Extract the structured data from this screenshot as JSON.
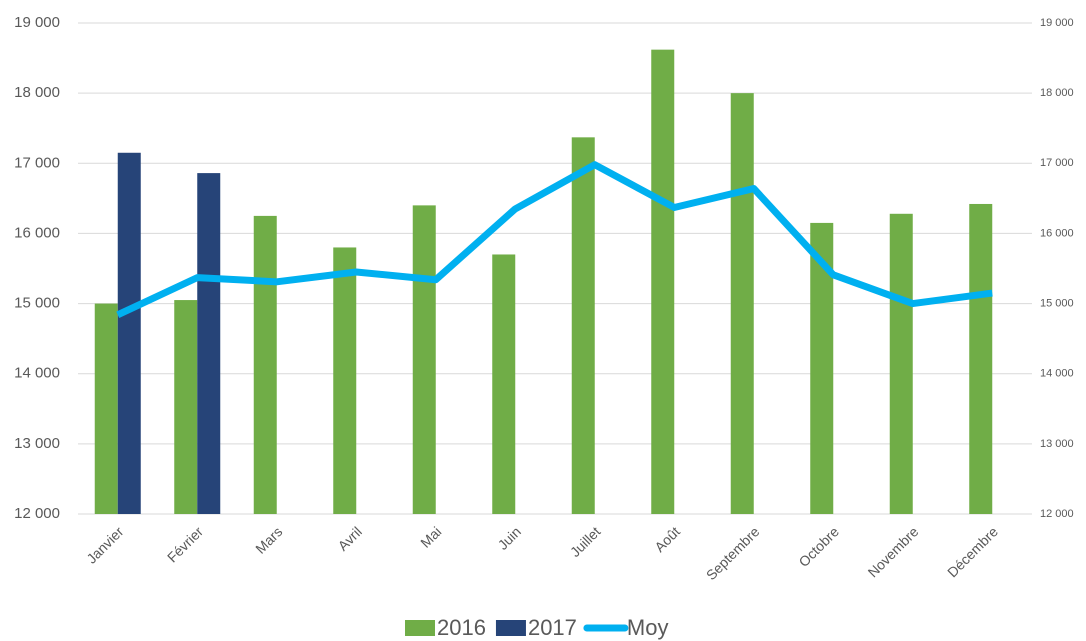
{
  "chart_data": {
    "type": "bar",
    "categories": [
      "Janvier",
      "Février",
      "Mars",
      "Avril",
      "Mai",
      "Juin",
      "Juillet",
      "Août",
      "Septembre",
      "Octobre",
      "Novembre",
      "Décembre"
    ],
    "series": [
      {
        "name": "2016",
        "color": "#70ad47",
        "values": [
          15000,
          15050,
          16250,
          15800,
          16400,
          15700,
          17370,
          18620,
          18000,
          16150,
          16280,
          16420
        ]
      },
      {
        "name": "2017",
        "color": "#264478",
        "values": [
          17150,
          16860,
          null,
          null,
          null,
          null,
          null,
          null,
          null,
          null,
          null,
          null
        ]
      },
      {
        "name": "Moy",
        "color": "#00b0f0",
        "type": "line",
        "axis": "y2",
        "values": [
          14840,
          15370,
          15310,
          15450,
          15340,
          16350,
          16980,
          16370,
          16640,
          15410,
          15000,
          15150
        ]
      }
    ],
    "ylim": [
      12000,
      19000
    ],
    "yticks": [
      {
        "value": 12000,
        "label": "12 000"
      },
      {
        "value": 13000,
        "label": "13 000"
      },
      {
        "value": 14000,
        "label": "14 000"
      },
      {
        "value": 15000,
        "label": "15 000"
      },
      {
        "value": 16000,
        "label": "16 000"
      },
      {
        "value": 17000,
        "label": "17 000"
      },
      {
        "value": 18000,
        "label": "18 000"
      },
      {
        "value": 19000,
        "label": "19 000"
      }
    ],
    "y2lim": [
      12000,
      19000
    ],
    "y2ticks": [
      {
        "value": 12000,
        "label": "12 000"
      },
      {
        "value": 13000,
        "label": "13 000"
      },
      {
        "value": 14000,
        "label": "14 000"
      },
      {
        "value": 15000,
        "label": "15 000"
      },
      {
        "value": 16000,
        "label": "16 000"
      },
      {
        "value": 17000,
        "label": "17 000"
      },
      {
        "value": 18000,
        "label": "18 000"
      },
      {
        "value": 19000,
        "label": "19 000"
      }
    ],
    "grid": true
  }
}
